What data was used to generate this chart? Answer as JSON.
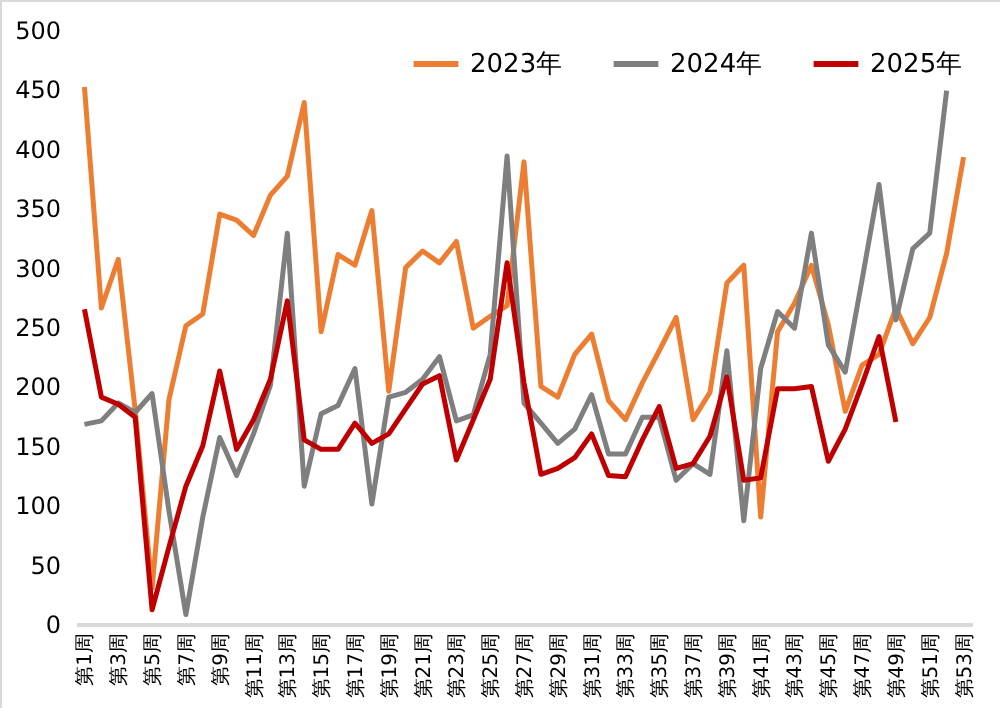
{
  "chart_data": {
    "type": "line",
    "categories": [
      "第1周",
      null,
      "第3周",
      null,
      "第5周",
      null,
      "第7周",
      null,
      "第9周",
      null,
      "第11周",
      null,
      "第13周",
      null,
      "第15周",
      null,
      "第17周",
      null,
      "第19周",
      null,
      "第21周",
      null,
      "第23周",
      null,
      "第25周",
      null,
      "第27周",
      null,
      "第29周",
      null,
      "第31周",
      null,
      "第33周",
      null,
      "第35周",
      null,
      "第37周",
      null,
      "第39周",
      null,
      "第41周",
      null,
      "第43周",
      null,
      "第45周",
      null,
      "第47周",
      null,
      "第49周",
      null,
      "第51周",
      null,
      "第53周"
    ],
    "series": [
      {
        "name": "2023年",
        "color": "#ed7d31",
        "values": [
          452,
          266,
          307,
          180,
          30,
          189,
          251,
          261,
          345,
          340,
          327,
          361,
          377,
          439,
          246,
          311,
          302,
          348,
          196,
          300,
          314,
          304,
          322,
          249,
          259,
          268,
          389,
          200,
          191,
          227,
          244,
          188,
          172,
          203,
          230,
          258,
          172,
          195,
          287,
          302,
          90,
          246,
          270,
          302,
          252,
          179,
          218,
          227,
          266,
          236,
          258,
          312,
          393
        ]
      },
      {
        "name": "2024年",
        "color": "#7f7f7f",
        "values": [
          168,
          171,
          186,
          178,
          194,
          95,
          8,
          90,
          157,
          125,
          160,
          201,
          329,
          116,
          177,
          184,
          215,
          101,
          191,
          195,
          206,
          225,
          171,
          176,
          227,
          394,
          186,
          169,
          152,
          164,
          193,
          143,
          143,
          174,
          174,
          121,
          135,
          126,
          230,
          87,
          215,
          263,
          249,
          329,
          235,
          212,
          290,
          370,
          256,
          316,
          329,
          449,
          null
        ]
      },
      {
        "name": "2025年",
        "color": "#c00000",
        "values": [
          265,
          191,
          185,
          174,
          12,
          65,
          116,
          150,
          213,
          147,
          172,
          206,
          272,
          155,
          147,
          147,
          169,
          152,
          160,
          181,
          202,
          209,
          138,
          172,
          206,
          304,
          203,
          126,
          131,
          140,
          160,
          125,
          124,
          155,
          183,
          131,
          135,
          158,
          208,
          121,
          123,
          198,
          198,
          200,
          137,
          164,
          202,
          242,
          170,
          null,
          null,
          null,
          null
        ]
      }
    ],
    "ylim": [
      0,
      500
    ],
    "yticks": [
      0,
      50,
      100,
      150,
      200,
      250,
      300,
      350,
      400,
      450,
      500
    ],
    "legend": "top right",
    "line_style": "solid",
    "marker": "none"
  }
}
